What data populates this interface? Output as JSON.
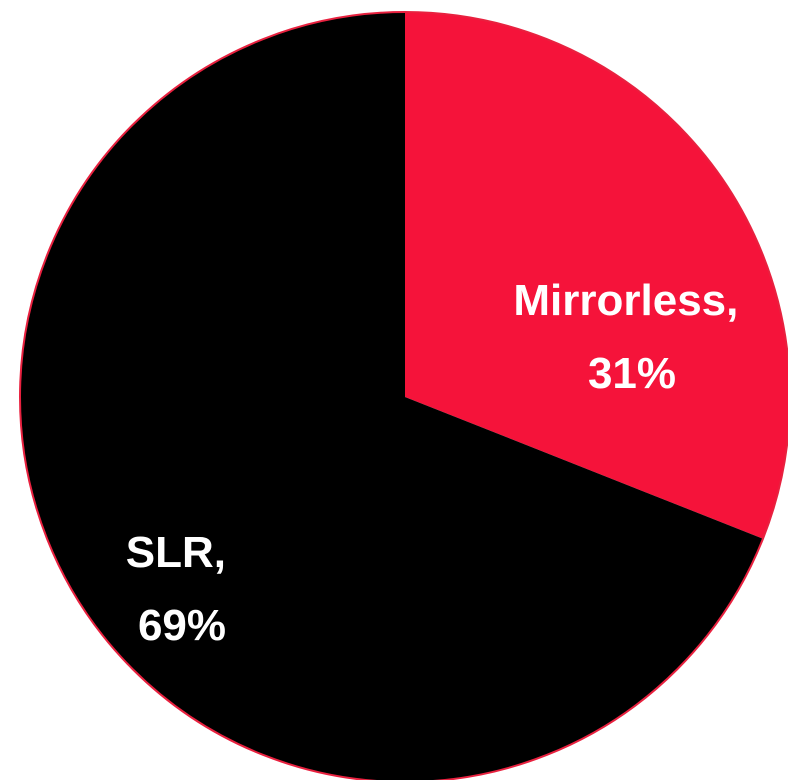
{
  "chart_data": {
    "type": "pie",
    "start_angle_deg": 0,
    "direction": "clockwise",
    "slices": [
      {
        "label": "Mirrorless",
        "value": 31,
        "label_line1": "Mirrorless,",
        "label_line2": "31%",
        "color": "#f5133a"
      },
      {
        "label": "SLR",
        "value": 69,
        "label_line1": "SLR,",
        "label_line2": "69%",
        "color": "#000000"
      }
    ],
    "border_color": "#e8213f",
    "legend": "none",
    "title": ""
  }
}
